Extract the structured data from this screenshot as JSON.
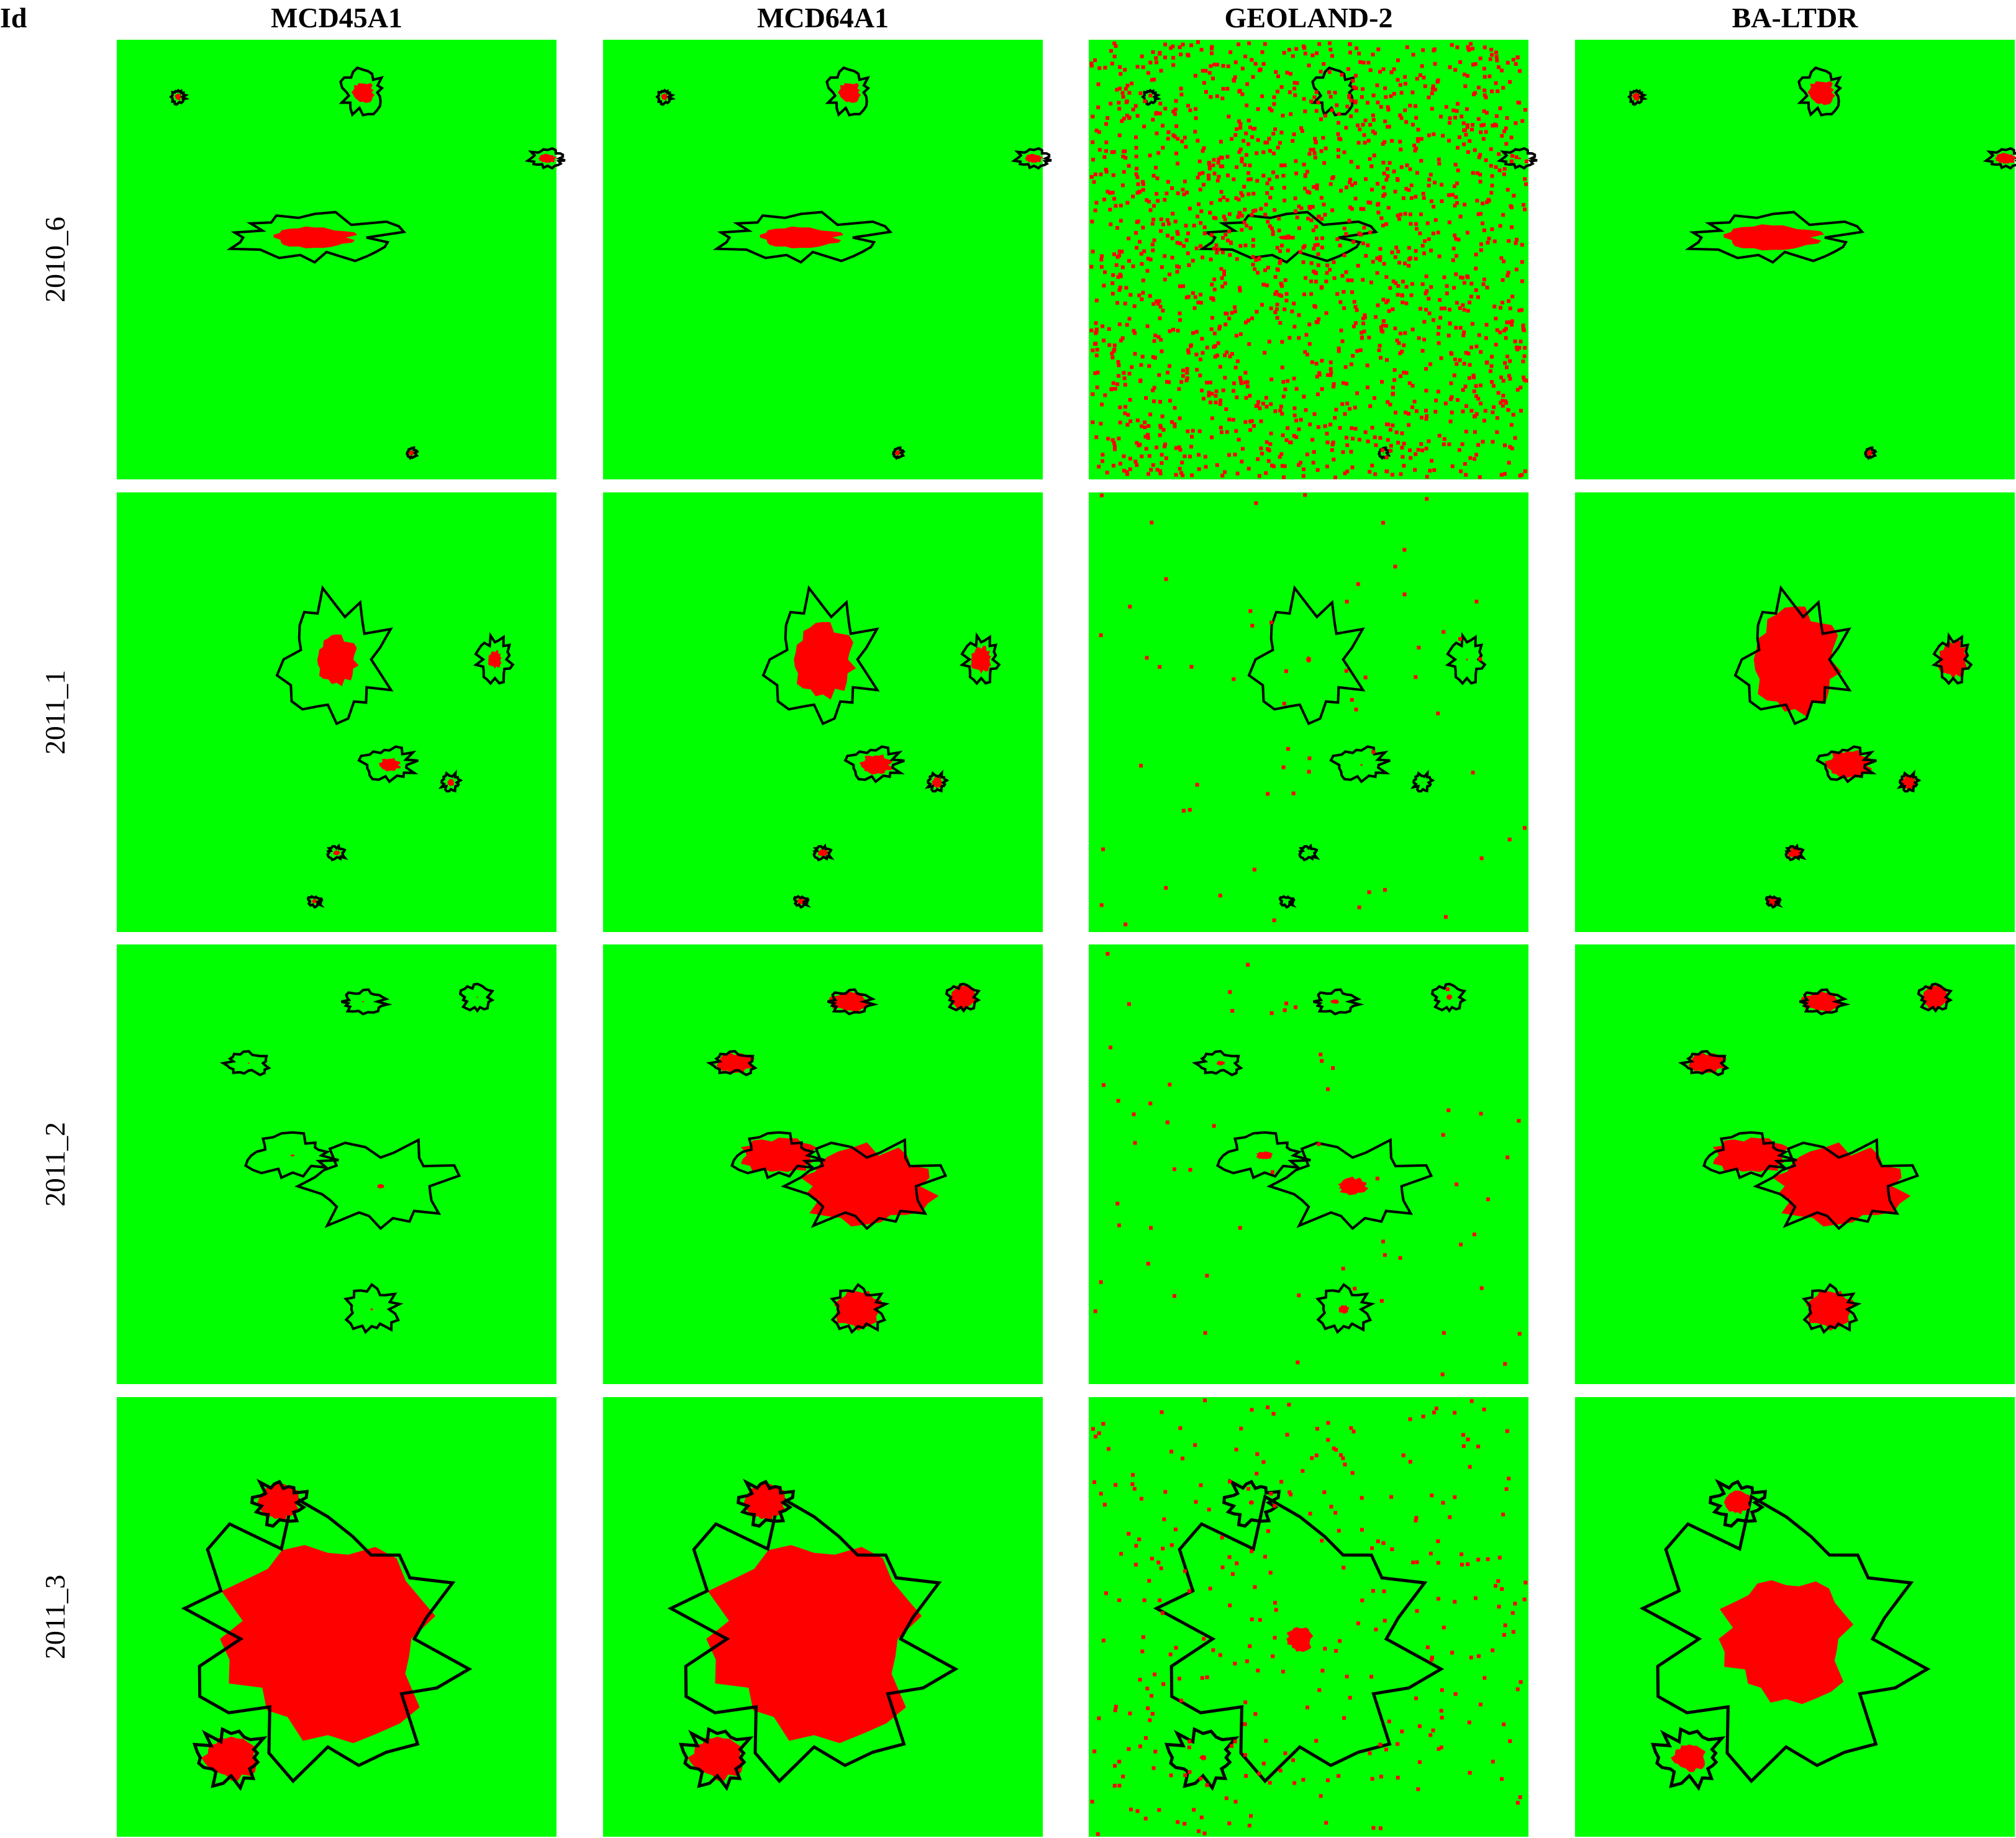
{
  "header": {
    "id_label": "Id",
    "columns": [
      "MCD45A1",
      "MCD64A1",
      "GEOLAND-2",
      "BA-LTDR"
    ]
  },
  "rows": [
    "2010_6",
    "2011_1",
    "2011_2",
    "2011_3"
  ]
}
